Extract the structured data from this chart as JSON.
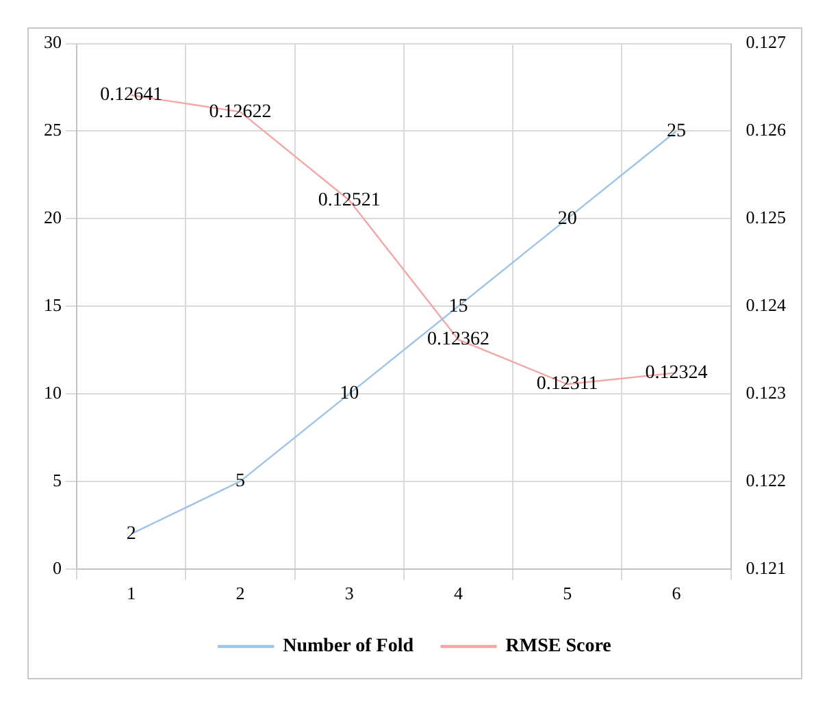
{
  "chart_data": {
    "type": "line",
    "categories": [
      "1",
      "2",
      "3",
      "4",
      "5",
      "6"
    ],
    "series": [
      {
        "name": "Number of Fold",
        "color": "#9dc3e6",
        "values": [
          2,
          5,
          10,
          15,
          20,
          25
        ]
      },
      {
        "name": "RMSE Score",
        "color": "#f4a6a6",
        "axis": "y2",
        "values": [
          0.12641,
          0.12622,
          0.12521,
          0.12362,
          0.12311,
          0.12324
        ]
      }
    ],
    "ylim": [
      0,
      30
    ],
    "yticks": [
      0,
      5,
      10,
      15,
      20,
      25,
      30
    ],
    "y2lim": [
      0.121,
      0.127
    ],
    "y2ticks": [
      0.121,
      0.122,
      0.123,
      0.124,
      0.125,
      0.126,
      0.127
    ],
    "data_labels": true,
    "grid": true,
    "legend": "bottom",
    "marker": "none",
    "line_style": "solid"
  }
}
